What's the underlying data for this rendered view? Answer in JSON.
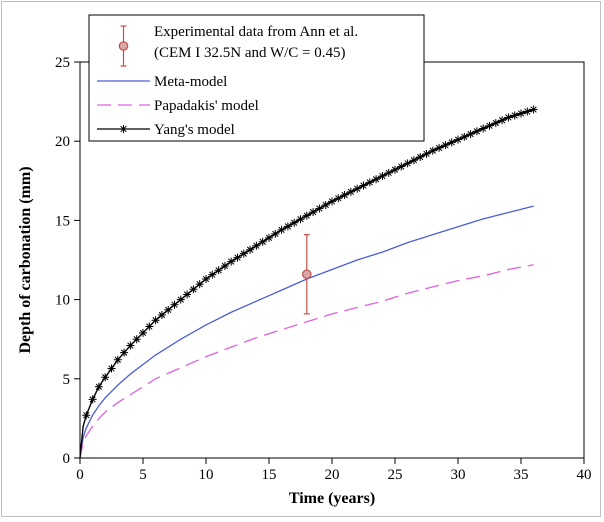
{
  "chart_data": {
    "type": "line",
    "xlabel": "Time (years)",
    "ylabel": "Depth of carbonation (mm)",
    "xlim": [
      0,
      40
    ],
    "ylim": [
      0,
      25
    ],
    "xticks": [
      0,
      5,
      10,
      15,
      20,
      25,
      30,
      35,
      40
    ],
    "yticks": [
      0,
      5,
      10,
      15,
      20,
      25
    ],
    "grid": false,
    "legend_position": "top-left",
    "legend": [
      {
        "key": "experimental",
        "lines": [
          "Experimental data from Ann et al.",
          "(CEM I 32.5N and W/C = 0.45)"
        ]
      },
      {
        "key": "meta",
        "lines": [
          "Meta-model"
        ]
      },
      {
        "key": "papadakis",
        "lines": [
          "Papadakis' model"
        ]
      },
      {
        "key": "yang",
        "lines": [
          "Yang's model"
        ]
      }
    ],
    "experimental": {
      "x": 18,
      "y": 11.6,
      "y_low": 9.1,
      "y_high": 14.1,
      "color": "#c0504d"
    },
    "series": [
      {
        "key": "meta",
        "name": "Meta-model",
        "style": "solid",
        "color": "#4a5fd6",
        "x": [
          0,
          0.25,
          0.5,
          1,
          1.5,
          2,
          3,
          4,
          5,
          6,
          8,
          10,
          12,
          14,
          16,
          18,
          20,
          22,
          24,
          26,
          28,
          30,
          32,
          34,
          36
        ],
        "y": [
          0,
          1.3,
          1.9,
          2.7,
          3.3,
          3.8,
          4.6,
          5.3,
          5.9,
          6.5,
          7.5,
          8.4,
          9.2,
          9.9,
          10.6,
          11.3,
          11.9,
          12.5,
          13.0,
          13.6,
          14.1,
          14.6,
          15.1,
          15.5,
          15.9
        ]
      },
      {
        "key": "papadakis",
        "name": "Papadakis' model",
        "style": "dashed",
        "color": "#e060e0",
        "x": [
          0,
          0.25,
          0.5,
          1,
          1.5,
          2,
          3,
          4,
          5,
          6,
          8,
          10,
          12,
          14,
          16,
          18,
          20,
          22,
          24,
          26,
          28,
          30,
          32,
          34,
          36
        ],
        "y": [
          0,
          1.0,
          1.4,
          2.0,
          2.5,
          2.9,
          3.5,
          4.0,
          4.5,
          5.0,
          5.7,
          6.4,
          7.0,
          7.6,
          8.1,
          8.6,
          9.1,
          9.5,
          9.9,
          10.4,
          10.8,
          11.2,
          11.5,
          11.9,
          12.2
        ]
      },
      {
        "key": "yang",
        "name": "Yang's model",
        "style": "solid-star",
        "color": "#000000",
        "marker_every": 0.5,
        "x": [
          0,
          0.25,
          0.5,
          1,
          1.5,
          2,
          3,
          4,
          5,
          6,
          8,
          10,
          12,
          14,
          16,
          18,
          20,
          22,
          24,
          26,
          28,
          30,
          32,
          34,
          36
        ],
        "y": [
          0,
          2.0,
          2.7,
          3.7,
          4.5,
          5.1,
          6.2,
          7.1,
          7.9,
          8.7,
          10.0,
          11.3,
          12.4,
          13.4,
          14.4,
          15.3,
          16.2,
          17.0,
          17.8,
          18.6,
          19.4,
          20.1,
          20.8,
          21.5,
          22.0
        ]
      }
    ]
  }
}
